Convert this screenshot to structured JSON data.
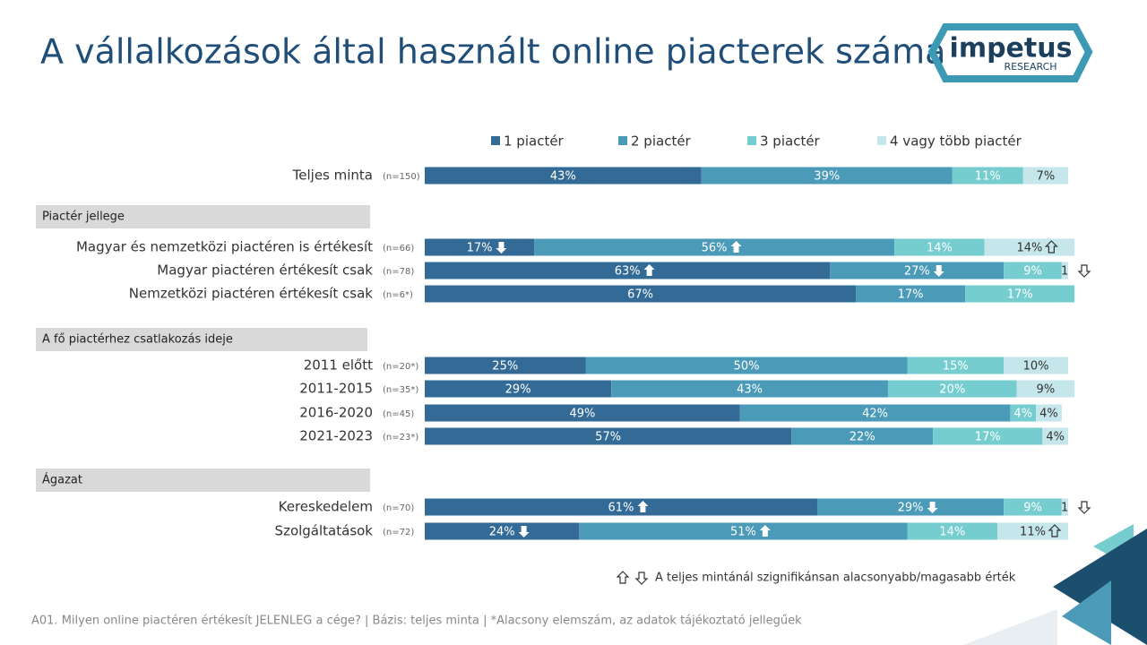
{
  "chart_data": {
    "type": "stacked-bar-horizontal",
    "title": "A vállalkozások által használt online piacterek száma",
    "categories": [
      "Teljes minta",
      "Magyar és nemzetközi piactéren is értékesít",
      "Magyar piactéren értékesít csak",
      "Nemzetközi piactéren értékesít csak",
      "2011 előtt",
      "2011-2015",
      "2016-2020",
      "2021-2023",
      "Kereskedelem",
      "Szolgáltatások"
    ],
    "sample_sizes": [
      "(n=150)",
      "(n=66)",
      "(n=78)",
      "(n=6*)",
      "(n=20*)",
      "(n=35*)",
      "(n=45)",
      "(n=23*)",
      "(n=70)",
      "(n=72)"
    ],
    "sections": [
      {
        "name": "Piactér jellege",
        "rows": [
          1,
          2,
          3
        ]
      },
      {
        "name": "A fő piactérhez csatlakozás ideje",
        "rows": [
          4,
          5,
          6,
          7
        ]
      },
      {
        "name": "Ágazat",
        "rows": [
          8,
          9
        ]
      }
    ],
    "xlim": [
      0,
      100
    ],
    "series": [
      {
        "name": "1 piactér",
        "color": "#336b96",
        "values": [
          43,
          17,
          63,
          67,
          25,
          29,
          49,
          57,
          61,
          24
        ],
        "value_labels": [
          "43%",
          "17%",
          "63%",
          "67%",
          "25%",
          "29%",
          "49%",
          "57%",
          "61%",
          "24%"
        ],
        "significance": [
          null,
          "down",
          "up",
          null,
          null,
          null,
          null,
          null,
          "up",
          "down"
        ]
      },
      {
        "name": "2 piactér",
        "color": "#4a9ab8",
        "values": [
          39,
          56,
          27,
          17,
          50,
          43,
          42,
          22,
          29,
          51
        ],
        "value_labels": [
          "39%",
          "56%",
          "27%",
          "17%",
          "50%",
          "43%",
          "42%",
          "22%",
          "29%",
          "51%"
        ],
        "significance": [
          null,
          "up",
          "down",
          null,
          null,
          null,
          null,
          null,
          "down",
          "up"
        ]
      },
      {
        "name": "3 piactér",
        "color": "#75cdd0",
        "values": [
          11,
          14,
          9,
          17,
          15,
          20,
          4,
          17,
          9,
          14
        ],
        "value_labels": [
          "11%",
          "14%",
          "9%",
          "17%",
          "15%",
          "20%",
          "4%",
          "17%",
          "9%",
          "14%"
        ],
        "significance": [
          null,
          null,
          null,
          null,
          null,
          null,
          null,
          null,
          null,
          null
        ]
      },
      {
        "name": "4 vagy több piactér",
        "color": "#c5e6ea",
        "values": [
          7,
          14,
          1,
          null,
          10,
          9,
          4,
          4,
          1,
          11
        ],
        "value_labels": [
          "7%",
          "14%",
          "1",
          null,
          "10%",
          "9%",
          "4%",
          "4%",
          "1",
          "11%"
        ],
        "significance": [
          null,
          "up",
          "down",
          null,
          null,
          null,
          null,
          null,
          "down",
          "up"
        ]
      }
    ],
    "significance_note": "A teljes mintánál szignifikánsan alacsonyabb/magasabb érték",
    "footnote": "A01. Milyen online piactéren értékesít JELENLEG a cége? | Bázis: teljes minta | *Alacsony elemszám, az adatok tájékoztató jellegűek"
  },
  "logo": {
    "name": "impetus",
    "subtitle": "RESEARCH"
  }
}
